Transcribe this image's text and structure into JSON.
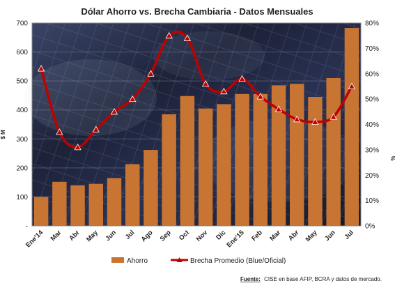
{
  "chart_data": {
    "type": "bar",
    "title": "Dólar Ahorro vs. Brecha Cambiaria - Datos Mensuales",
    "categories": [
      "Ene'14",
      "Mar",
      "Abr",
      "May",
      "Jun",
      "Jul",
      "Ago",
      "Sep",
      "Oct",
      "Nov",
      "Dic",
      "Ene'15",
      "Feb",
      "Mar",
      "Abr",
      "May",
      "Jun",
      "Jul"
    ],
    "y_left": {
      "ticks": [
        "-",
        "100",
        "200",
        "300",
        "400",
        "500",
        "600",
        "700"
      ],
      "ylim": [
        0,
        700
      ],
      "label": "$ M"
    },
    "y_right": {
      "ticks": [
        "0%",
        "10%",
        "20%",
        "30%",
        "40%",
        "50%",
        "60%",
        "70%",
        "80%"
      ],
      "ylim": [
        0,
        80
      ],
      "label": "%"
    },
    "series": [
      {
        "name": "Ahorro",
        "type": "bar",
        "axis": "left",
        "color": "#C87533",
        "values": [
          100,
          152,
          140,
          145,
          165,
          213,
          262,
          385,
          448,
          405,
          420,
          455,
          455,
          485,
          490,
          445,
          510,
          683
        ]
      },
      {
        "name": "Brecha Promedio (Blue/Oficial)",
        "type": "line",
        "axis": "right",
        "color": "#C00000",
        "values": [
          62,
          37,
          31,
          38,
          45,
          50,
          60,
          75,
          74,
          56,
          53,
          58,
          51,
          46,
          42,
          41,
          43,
          55
        ]
      }
    ],
    "legend": {
      "position": "bottom"
    },
    "source_label": "Fuente:",
    "source_text": "CISE en base AFIP, BCRA y datos de mercado."
  }
}
